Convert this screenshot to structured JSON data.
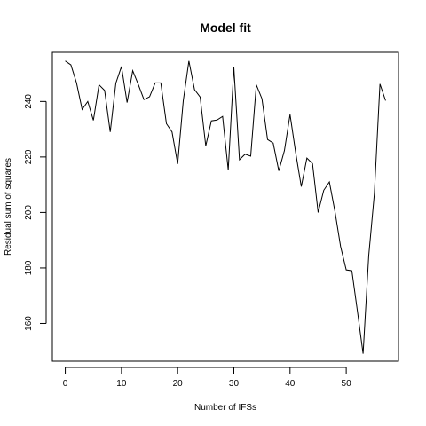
{
  "chart_data": {
    "type": "line",
    "title": "Model fit",
    "xlabel": "Number of IFSs",
    "ylabel": "Residual sum of squares",
    "xlim": [
      -2.3,
      59.3
    ],
    "ylim": [
      146.4,
      257.7
    ],
    "grid": false,
    "x_ticks": [
      0,
      10,
      20,
      30,
      40,
      50
    ],
    "y_ticks": [
      160,
      180,
      200,
      220,
      240
    ],
    "series": [
      {
        "x": [
          0,
          1,
          2,
          3,
          4,
          5,
          6,
          7,
          8,
          9,
          10,
          11,
          12,
          13,
          14,
          15,
          16,
          17,
          18,
          19,
          20,
          21,
          22,
          23,
          24,
          25,
          26,
          27,
          28,
          29,
          30,
          31,
          32,
          33,
          34,
          35,
          36,
          37,
          38,
          39,
          40,
          41,
          42,
          43,
          44,
          45,
          46,
          47,
          48,
          49,
          50,
          51,
          52,
          53,
          54,
          55,
          56,
          57
        ],
        "values": [
          254.6,
          253.2,
          246.7,
          237.1,
          240,
          233.2,
          246,
          244,
          229,
          246.6,
          252.6,
          239.6,
          251.1,
          246.1,
          240.7,
          241.7,
          246.7,
          246.7,
          232,
          229,
          217.5,
          240.3,
          254.6,
          244.3,
          241.6,
          224,
          233,
          233.3,
          234.6,
          215.3,
          252.3,
          219,
          221,
          220.3,
          246,
          241,
          226.3,
          225,
          215,
          222.3,
          235.3,
          221.6,
          209.3,
          219.6,
          217.6,
          200,
          208,
          211,
          200.3,
          187.7,
          179.3,
          179,
          164.3,
          149.1,
          184.3,
          206.6,
          246.3,
          240.3
        ]
      }
    ]
  }
}
